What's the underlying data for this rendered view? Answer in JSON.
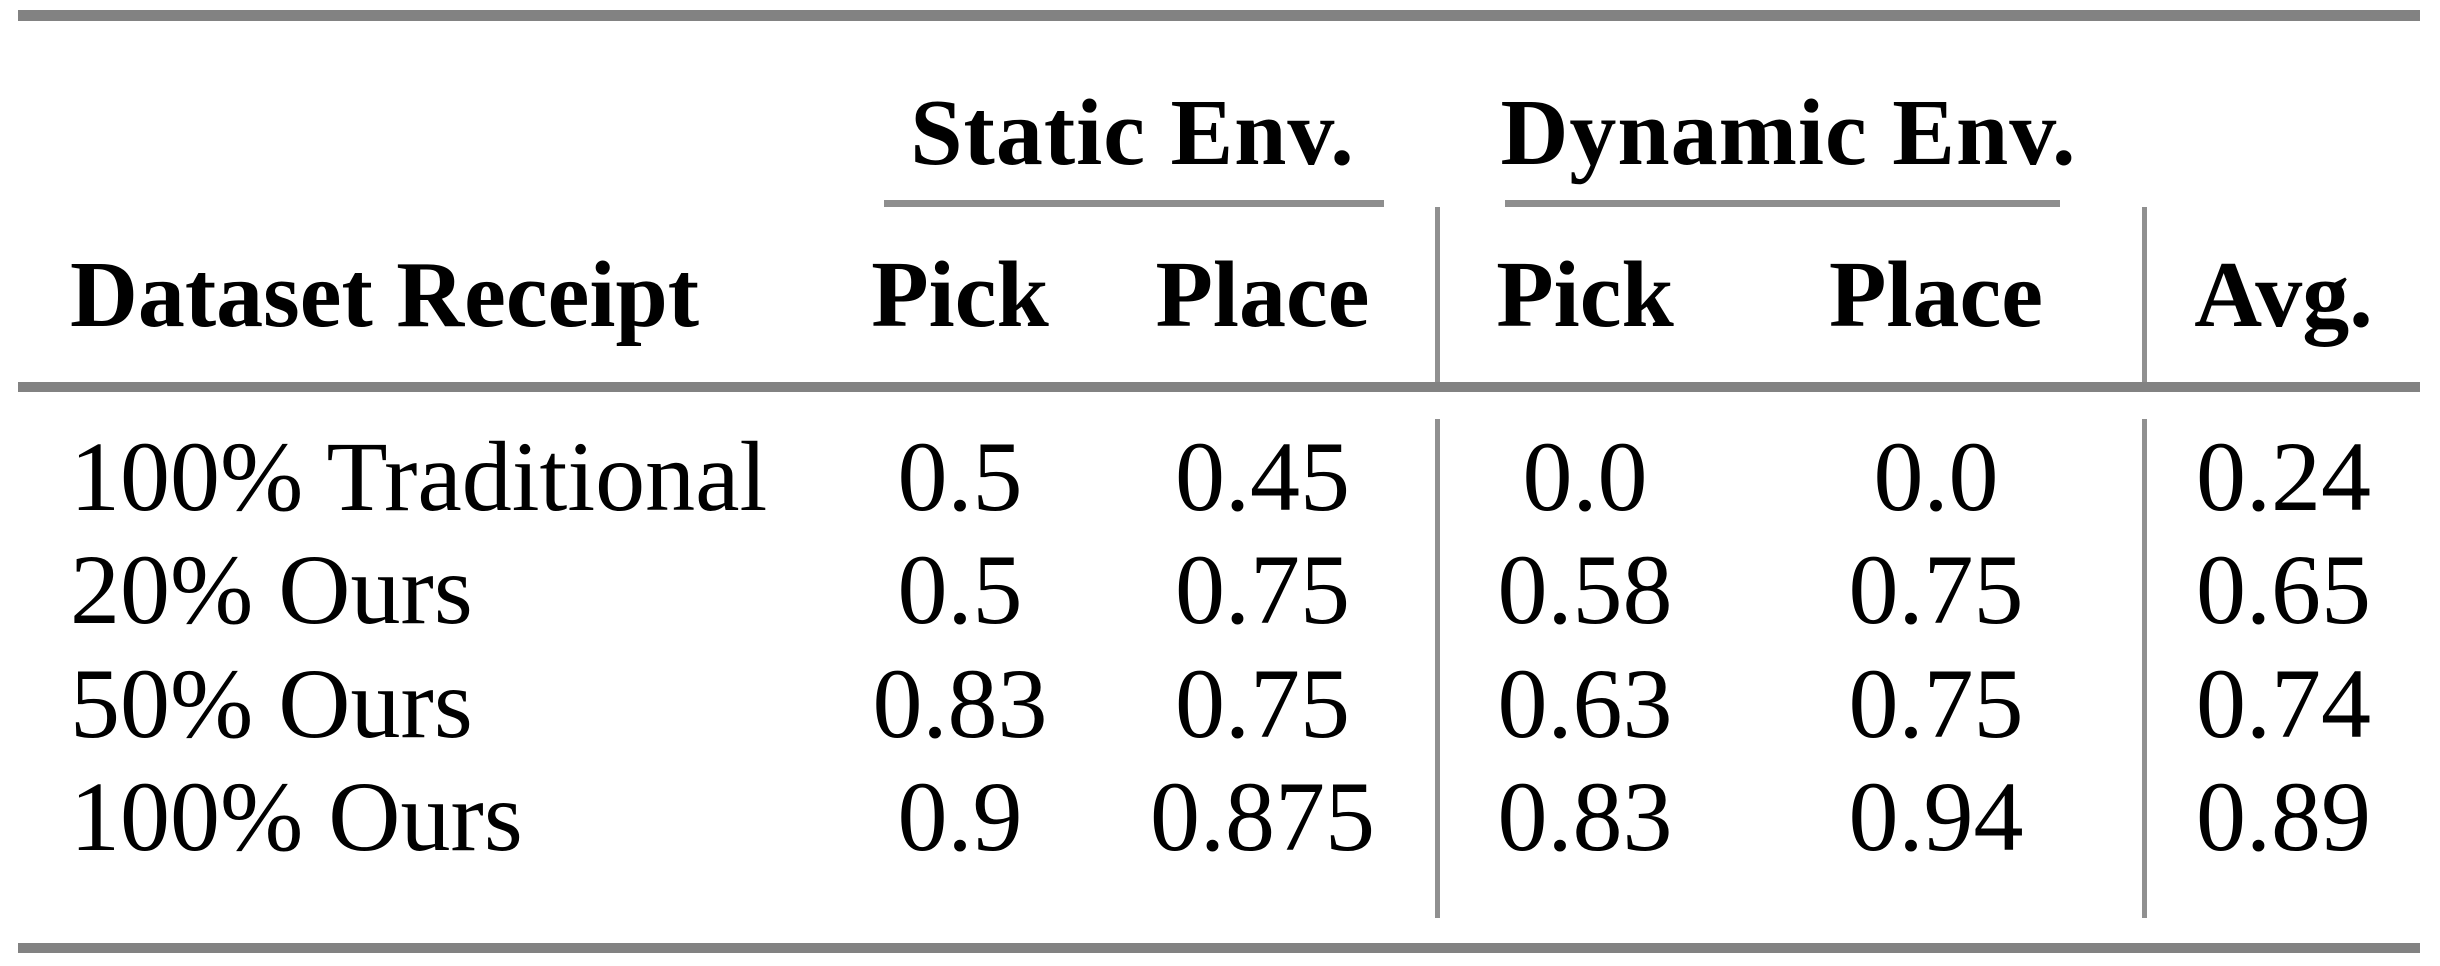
{
  "page": {
    "background_color": "#ffffff",
    "text_color": "#000000",
    "rule_thick_color": "#828282",
    "rule_thin_color": "#8e8e8e"
  },
  "table": {
    "groups": [
      {
        "label": "Static Env."
      },
      {
        "label": "Dynamic Env."
      }
    ],
    "columns": [
      "Dataset Receipt",
      "Pick",
      "Place",
      "Pick",
      "Place",
      "Avg."
    ],
    "rows": [
      {
        "cells": [
          "100% Traditional",
          "0.5",
          "0.45",
          "0.0",
          "0.0",
          "0.24"
        ]
      },
      {
        "cells": [
          "20% Ours",
          "0.5",
          "0.75",
          "0.58",
          "0.75",
          "0.65"
        ]
      },
      {
        "cells": [
          "50% Ours",
          "0.83",
          "0.75",
          "0.63",
          "0.75",
          "0.74"
        ]
      },
      {
        "cells": [
          "100% Ours",
          "0.9",
          "0.875",
          "0.83",
          "0.94",
          "0.89"
        ]
      }
    ]
  },
  "chart_data": {
    "type": "table",
    "row_header": "Dataset Receipt",
    "column_groups": [
      {
        "label": "Static Env.",
        "columns": [
          "Pick",
          "Place"
        ]
      },
      {
        "label": "Dynamic Env.",
        "columns": [
          "Pick",
          "Place"
        ]
      }
    ],
    "extra_columns": [
      "Avg."
    ],
    "rows": [
      {
        "dataset_receipt": "100% Traditional",
        "static_pick": 0.5,
        "static_place": 0.45,
        "dynamic_pick": 0.0,
        "dynamic_place": 0.0,
        "avg": 0.24
      },
      {
        "dataset_receipt": "20% Ours",
        "static_pick": 0.5,
        "static_place": 0.75,
        "dynamic_pick": 0.58,
        "dynamic_place": 0.75,
        "avg": 0.65
      },
      {
        "dataset_receipt": "50% Ours",
        "static_pick": 0.83,
        "static_place": 0.75,
        "dynamic_pick": 0.63,
        "dynamic_place": 0.75,
        "avg": 0.74
      },
      {
        "dataset_receipt": "100% Ours",
        "static_pick": 0.9,
        "static_place": 0.875,
        "dynamic_pick": 0.83,
        "dynamic_place": 0.94,
        "avg": 0.89
      }
    ]
  }
}
